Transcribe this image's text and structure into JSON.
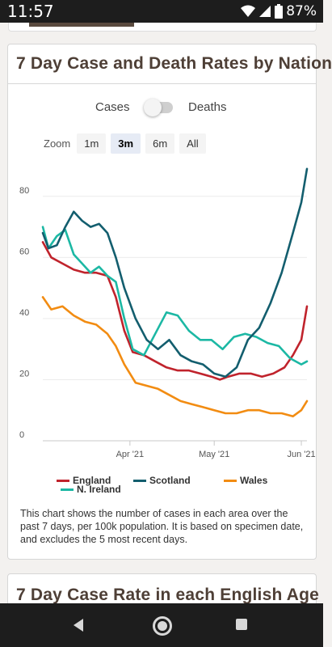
{
  "status_bar": {
    "time": "11:57",
    "battery": "87%"
  },
  "card": {
    "title": "7 Day Case and Death Rates by Nation",
    "toggle": {
      "left_label": "Cases",
      "right_label": "Deaths",
      "state": "Cases"
    },
    "zoom": {
      "label": "Zoom",
      "options": [
        "1m",
        "3m",
        "6m",
        "All"
      ],
      "selected": "3m"
    },
    "legend": [
      {
        "name": "England",
        "color": "#c0232c"
      },
      {
        "name": "Scotland",
        "color": "#135e6e"
      },
      {
        "name": "Wales",
        "color": "#f28c12"
      },
      {
        "name": "N. Ireland",
        "color": "#1cb8a4"
      }
    ],
    "description": "This chart shows the number of cases in each area over the past 7 days, per 100k population. It is based on specimen date, and excludes the 5 most recent days."
  },
  "next_card": {
    "title": "7 Day Case Rate in each English Age"
  },
  "chart_data": {
    "type": "line",
    "x_tick_labels": [
      "Apr '21",
      "May '21",
      "Jun '21"
    ],
    "y_tick_labels": [
      "0",
      "20",
      "40",
      "60",
      "80"
    ],
    "ylim": [
      0,
      90
    ],
    "grid": true,
    "legend_position": "bottom",
    "series": [
      {
        "name": "England",
        "color": "#c0232c",
        "x": [
          "2021-03-01",
          "2021-03-04",
          "2021-03-08",
          "2021-03-12",
          "2021-03-16",
          "2021-03-20",
          "2021-03-24",
          "2021-03-27",
          "2021-03-30",
          "2021-04-02",
          "2021-04-06",
          "2021-04-10",
          "2021-04-14",
          "2021-04-18",
          "2021-04-22",
          "2021-04-26",
          "2021-04-30",
          "2021-05-03",
          "2021-05-06",
          "2021-05-10",
          "2021-05-14",
          "2021-05-18",
          "2021-05-22",
          "2021-05-26",
          "2021-05-29",
          "2021-06-01",
          "2021-06-03"
        ],
        "y": [
          65,
          60,
          58,
          56,
          55,
          55,
          54,
          47,
          36,
          29,
          28,
          26,
          24,
          23,
          23,
          22,
          21,
          20,
          21,
          22,
          22,
          21,
          22,
          24,
          28,
          33,
          44
        ]
      },
      {
        "name": "Scotland",
        "color": "#135e6e",
        "x": [
          "2021-03-01",
          "2021-03-03",
          "2021-03-06",
          "2021-03-09",
          "2021-03-12",
          "2021-03-15",
          "2021-03-18",
          "2021-03-21",
          "2021-03-24",
          "2021-03-27",
          "2021-03-30",
          "2021-04-03",
          "2021-04-07",
          "2021-04-11",
          "2021-04-15",
          "2021-04-19",
          "2021-04-23",
          "2021-04-27",
          "2021-05-01",
          "2021-05-05",
          "2021-05-09",
          "2021-05-13",
          "2021-05-17",
          "2021-05-21",
          "2021-05-25",
          "2021-05-29",
          "2021-06-01",
          "2021-06-03"
        ],
        "y": [
          68,
          63,
          64,
          70,
          75,
          72,
          70,
          71,
          68,
          60,
          50,
          40,
          33,
          30,
          33,
          28,
          26,
          25,
          22,
          21,
          24,
          33,
          37,
          45,
          55,
          68,
          78,
          89
        ]
      },
      {
        "name": "Wales",
        "color": "#f28c12",
        "x": [
          "2021-03-01",
          "2021-03-04",
          "2021-03-08",
          "2021-03-12",
          "2021-03-16",
          "2021-03-20",
          "2021-03-24",
          "2021-03-27",
          "2021-03-30",
          "2021-04-03",
          "2021-04-07",
          "2021-04-11",
          "2021-04-15",
          "2021-04-19",
          "2021-04-23",
          "2021-04-27",
          "2021-05-01",
          "2021-05-05",
          "2021-05-09",
          "2021-05-13",
          "2021-05-17",
          "2021-05-21",
          "2021-05-25",
          "2021-05-29",
          "2021-06-01",
          "2021-06-03"
        ],
        "y": [
          47,
          43,
          44,
          41,
          39,
          38,
          35,
          31,
          25,
          19,
          18,
          17,
          15,
          13,
          12,
          11,
          10,
          9,
          9,
          10,
          10,
          9,
          9,
          8,
          10,
          13
        ]
      },
      {
        "name": "N. Ireland",
        "color": "#1cb8a4",
        "x": [
          "2021-03-01",
          "2021-03-03",
          "2021-03-06",
          "2021-03-09",
          "2021-03-12",
          "2021-03-15",
          "2021-03-18",
          "2021-03-21",
          "2021-03-24",
          "2021-03-27",
          "2021-03-30",
          "2021-04-02",
          "2021-04-06",
          "2021-04-10",
          "2021-04-14",
          "2021-04-18",
          "2021-04-22",
          "2021-04-26",
          "2021-04-30",
          "2021-05-04",
          "2021-05-08",
          "2021-05-12",
          "2021-05-16",
          "2021-05-20",
          "2021-05-24",
          "2021-05-28",
          "2021-06-01",
          "2021-06-03"
        ],
        "y": [
          70,
          63,
          67,
          69,
          61,
          58,
          55,
          57,
          54,
          52,
          40,
          30,
          28,
          35,
          42,
          41,
          36,
          33,
          33,
          30,
          34,
          35,
          34,
          32,
          31,
          27,
          25,
          26
        ]
      }
    ]
  }
}
